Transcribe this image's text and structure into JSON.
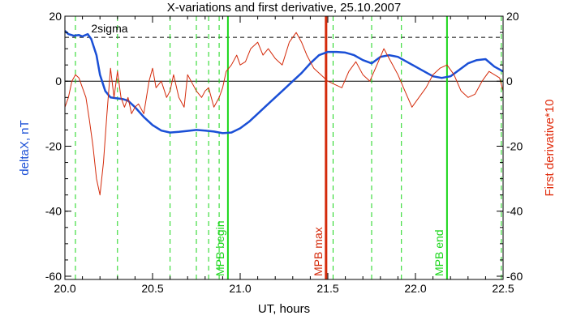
{
  "chart_data": {
    "type": "line",
    "title": "X-variations and first derivative, 25.10.2007",
    "xlabel": "UT, hours",
    "ylabel_left": "deltaX, nT",
    "ylabel_right": "First derivative*10",
    "xlim": [
      20.0,
      22.5
    ],
    "ylim_left": [
      -61,
      20
    ],
    "ylim_right": [
      -61,
      20
    ],
    "x_ticks": [
      "20.0",
      "20.5",
      "21.0",
      "21.5",
      "22.0",
      "22.5"
    ],
    "x_tick_values": [
      20.0,
      20.5,
      21.0,
      21.5,
      22.0,
      22.5
    ],
    "y_ticks": [
      "20",
      "0",
      "-20",
      "-40",
      "-60"
    ],
    "y_tick_values": [
      20,
      0,
      -20,
      -40,
      -60
    ],
    "sigma_label": "2sigma",
    "sigma_level": 13.5,
    "colors": {
      "deltaX": "#1a4fd6",
      "derivative": "#d42a0a",
      "green_markers": "#19d619",
      "red_marker": "#d42a0a",
      "left_axis_label": "#1a4fd6",
      "right_axis_label": "#e02a0a"
    },
    "series": [
      {
        "name": "deltaX",
        "axis": "left",
        "x": [
          20.0,
          20.02,
          20.05,
          20.08,
          20.1,
          20.13,
          20.15,
          20.18,
          20.2,
          20.23,
          20.26,
          20.3,
          20.33,
          20.36,
          20.4,
          20.45,
          20.5,
          20.55,
          20.6,
          20.65,
          20.7,
          20.75,
          20.8,
          20.85,
          20.9,
          20.95,
          21.0,
          21.05,
          21.1,
          21.15,
          21.2,
          21.25,
          21.3,
          21.35,
          21.4,
          21.45,
          21.5,
          21.55,
          21.6,
          21.65,
          21.7,
          21.75,
          21.8,
          21.85,
          21.9,
          21.95,
          22.0,
          22.05,
          22.1,
          22.15,
          22.2,
          22.25,
          22.3,
          22.35,
          22.4,
          22.45,
          22.5
        ],
        "y": [
          15.5,
          14.5,
          14.0,
          14.2,
          13.8,
          14.5,
          13.0,
          8.0,
          2.0,
          -3.0,
          -5.0,
          -5.3,
          -5.5,
          -6.0,
          -8.0,
          -11.0,
          -13.5,
          -15.2,
          -15.8,
          -15.6,
          -15.3,
          -15.0,
          -15.2,
          -15.5,
          -16.0,
          -15.8,
          -14.5,
          -12.5,
          -10.0,
          -7.5,
          -5.0,
          -2.5,
          0.0,
          2.5,
          5.5,
          8.0,
          9.0,
          9.0,
          8.8,
          8.0,
          6.5,
          5.5,
          7.5,
          8.0,
          7.5,
          6.0,
          4.5,
          3.0,
          1.5,
          1.0,
          1.5,
          3.5,
          5.5,
          6.5,
          6.8,
          4.5,
          3.0
        ]
      },
      {
        "name": "First derivative*10",
        "axis": "right",
        "x": [
          20.0,
          20.02,
          20.04,
          20.06,
          20.08,
          20.1,
          20.12,
          20.14,
          20.16,
          20.18,
          20.2,
          20.22,
          20.24,
          20.26,
          20.28,
          20.3,
          20.32,
          20.34,
          20.36,
          20.38,
          20.4,
          20.42,
          20.45,
          20.48,
          20.5,
          20.52,
          20.55,
          20.58,
          20.6,
          20.62,
          20.65,
          20.68,
          20.7,
          20.72,
          20.75,
          20.78,
          20.8,
          20.82,
          20.85,
          20.88,
          20.9,
          20.92,
          20.95,
          20.98,
          21.0,
          21.03,
          21.06,
          21.1,
          21.13,
          21.16,
          21.2,
          21.24,
          21.28,
          21.32,
          21.35,
          21.38,
          21.42,
          21.46,
          21.5,
          21.54,
          21.58,
          21.62,
          21.66,
          21.7,
          21.74,
          21.78,
          21.82,
          21.86,
          21.9,
          21.94,
          21.98,
          22.02,
          22.06,
          22.1,
          22.14,
          22.18,
          22.22,
          22.26,
          22.3,
          22.34,
          22.38,
          22.42,
          22.45,
          22.48,
          22.5
        ],
        "y": [
          -8,
          -5,
          0,
          2,
          1,
          -2,
          -5,
          -12,
          -20,
          -30,
          -35,
          -25,
          -10,
          4,
          -5,
          3,
          -5,
          -8,
          -5,
          -10,
          -8,
          -7,
          -10,
          0,
          4,
          -2,
          0,
          -5,
          -3,
          2,
          -5,
          -8,
          2,
          0,
          -3,
          -5,
          -3,
          -2,
          -8,
          -5,
          -2,
          3,
          5,
          8,
          5,
          6,
          10,
          12,
          8,
          10,
          7,
          5,
          12,
          15,
          12,
          8,
          4,
          2,
          0,
          -1,
          -2,
          3,
          6,
          2,
          0,
          5,
          10,
          6,
          2,
          -3,
          -8,
          -5,
          -2,
          2,
          4,
          5,
          2,
          -3,
          -5,
          -4,
          0,
          3,
          2,
          1,
          -3
        ]
      }
    ],
    "green_dashed_lines_x": [
      20.06,
      20.3,
      20.6,
      20.75,
      20.82,
      20.88,
      21.53,
      21.75,
      21.92,
      22.49
    ],
    "green_solid_lines_x": [
      20.93,
      22.18
    ],
    "red_solid_lines_x": [
      21.49
    ],
    "markers": [
      {
        "label": "MPB begin",
        "x": 20.93,
        "color": "#19d619"
      },
      {
        "label": "MPB max",
        "x": 21.49,
        "color": "#d42a0a"
      },
      {
        "label": "MPB end",
        "x": 22.18,
        "color": "#19d619"
      }
    ]
  }
}
